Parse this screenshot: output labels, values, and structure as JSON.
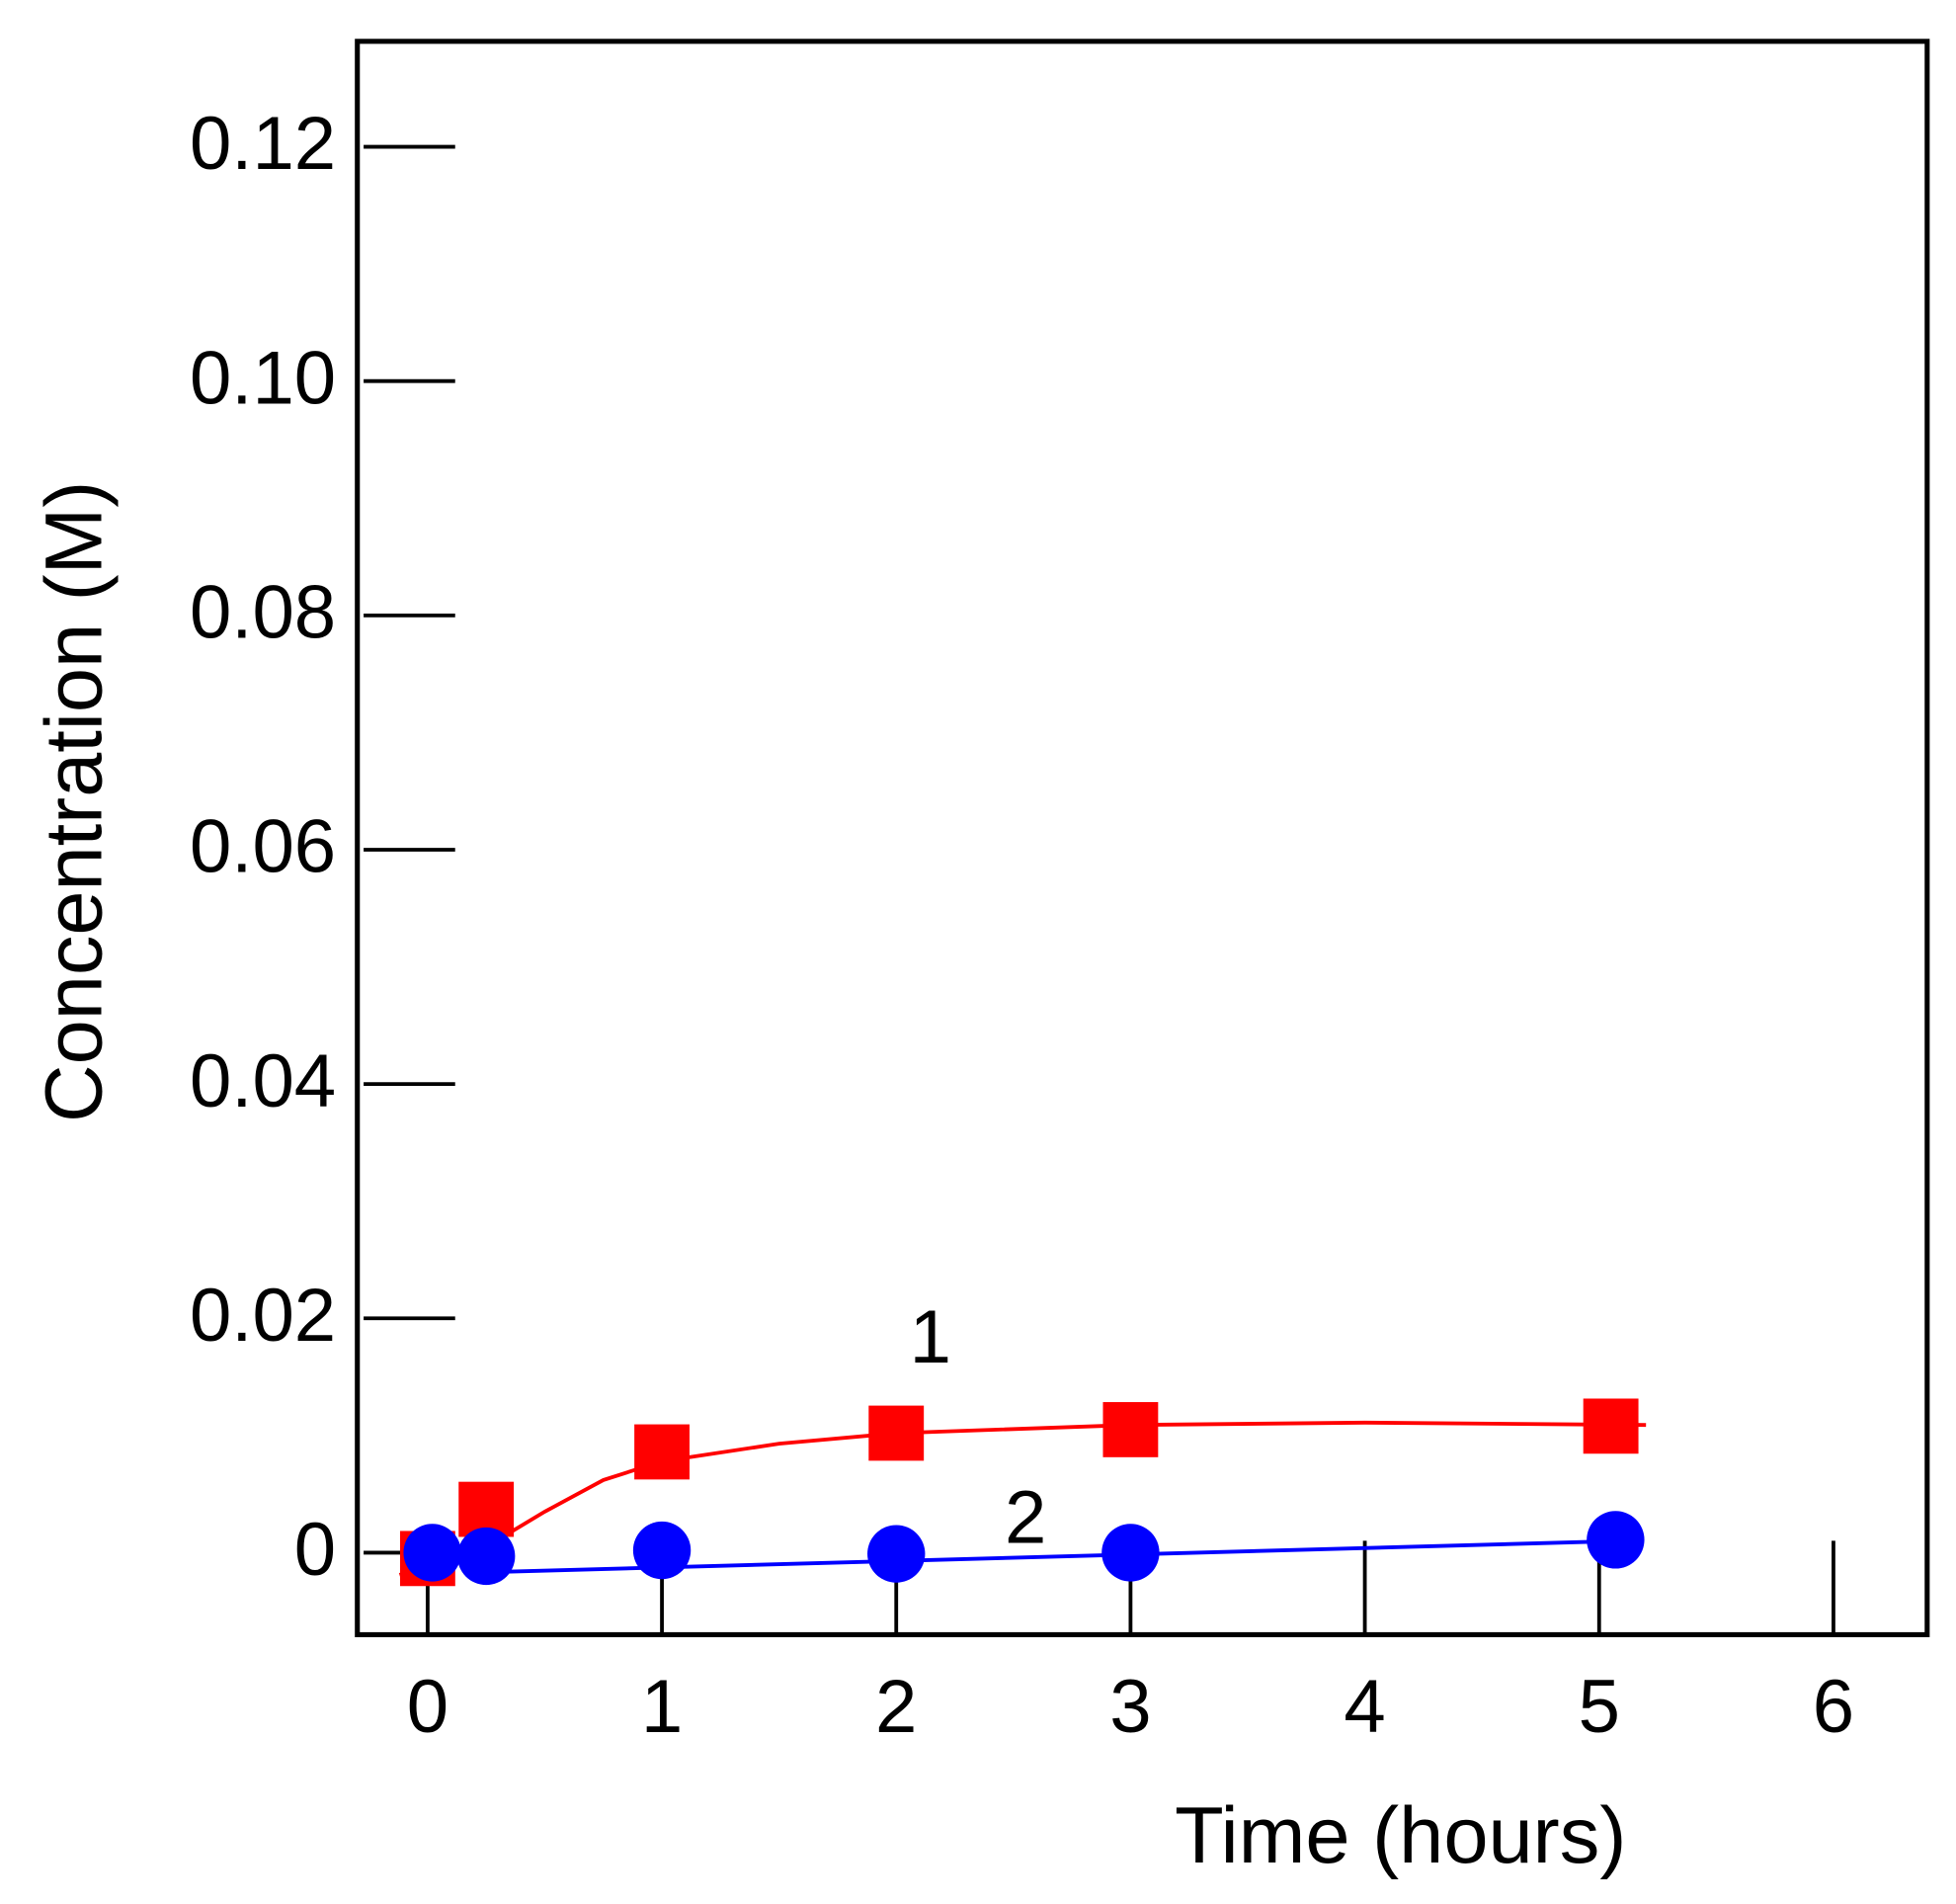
{
  "chart_data": {
    "type": "scatter",
    "xlabel": "Time (hours)",
    "ylabel": "Concentration (M)",
    "xlim": [
      -0.3,
      6.4
    ],
    "ylim": [
      -0.007,
      0.129
    ],
    "xticks": [
      0,
      1,
      2,
      3,
      4,
      5,
      6
    ],
    "yticks": [
      0,
      0.02,
      0.04,
      0.06,
      0.08,
      {
        "value": 0.1,
        "label": "0.10"
      },
      0.12
    ],
    "annotations": [
      "1",
      "2"
    ],
    "series": [
      {
        "color": "#ff0000",
        "marker": "square",
        "x": [
          0,
          0.25,
          1,
          2,
          3,
          5.05
        ],
        "values": [
          -0.0005,
          0.0037,
          0.0086,
          0.0102,
          0.0105,
          0.0108
        ],
        "fit_x": [
          -0.12,
          0.25,
          0.5,
          0.75,
          1,
          1.5,
          2,
          3,
          4,
          5.2
        ],
        "fit_values": [
          -0.0019,
          0.0005,
          0.0035,
          0.0062,
          0.0078,
          0.0093,
          0.0102,
          0.0109,
          0.0111,
          0.0109
        ]
      },
      {
        "color": "#0000ff",
        "marker": "circle",
        "x": [
          0.02,
          0.25,
          1,
          2,
          3,
          5.07
        ],
        "values": [
          0,
          -0.0003,
          0.0002,
          -0.0001,
          0,
          0.0011
        ],
        "fit_x": [
          0.2,
          5.1
        ],
        "fit_values": [
          -0.0017,
          0.001
        ]
      }
    ]
  }
}
